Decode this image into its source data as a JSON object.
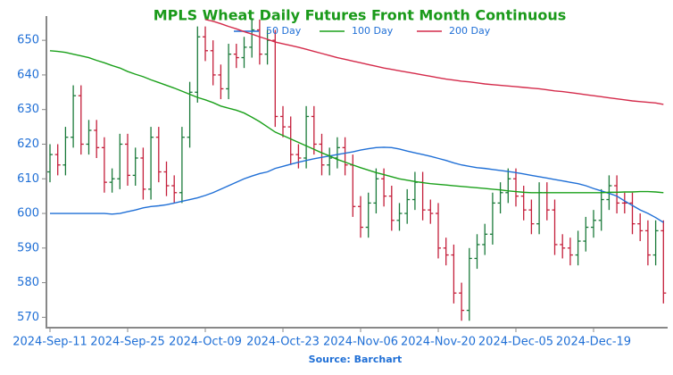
{
  "chart_data": {
    "type": "ohlc",
    "title": "MPLS Wheat Daily Futures Front Month Continuous",
    "source": "Source: Barchart",
    "categories": [
      "2024-Sep-11",
      null,
      null,
      null,
      null,
      null,
      null,
      null,
      null,
      null,
      "2024-Sep-25",
      null,
      null,
      null,
      null,
      null,
      null,
      null,
      null,
      null,
      "2024-Oct-09",
      null,
      null,
      null,
      null,
      null,
      null,
      null,
      null,
      null,
      "2024-Oct-23",
      null,
      null,
      null,
      null,
      null,
      null,
      null,
      null,
      null,
      "2024-Nov-06",
      null,
      null,
      null,
      null,
      null,
      null,
      null,
      null,
      null,
      "2024-Nov-20",
      null,
      null,
      null,
      null,
      null,
      null,
      null,
      null,
      null,
      "2024-Dec-05",
      null,
      null,
      null,
      null,
      null,
      null,
      null,
      null,
      null,
      "2024-Dec-19",
      null,
      null,
      null,
      null,
      null,
      null,
      null,
      null,
      null
    ],
    "up_color": "#1a7a3a",
    "down_color": "#c41e3a",
    "ohlc": {
      "open": [
        612,
        617,
        614,
        622,
        634,
        620,
        624,
        619,
        609,
        610,
        620,
        611,
        616,
        607,
        622,
        612,
        608,
        606,
        622,
        635,
        651,
        647,
        640,
        636,
        646,
        645,
        648,
        653,
        646,
        650,
        628,
        625,
        617,
        616,
        628,
        620,
        614,
        616,
        619,
        614,
        602,
        596,
        603,
        610,
        605,
        598,
        600,
        604,
        609,
        601,
        600,
        590,
        588,
        577,
        572,
        587,
        591,
        594,
        603,
        606,
        610,
        605,
        601,
        597,
        606,
        601,
        591,
        590,
        588,
        592,
        596,
        598,
        604,
        608,
        603,
        603,
        597,
        595,
        588,
        595
      ],
      "high": [
        620,
        620,
        625,
        637,
        637,
        627,
        627,
        622,
        613,
        623,
        623,
        619,
        619,
        625,
        625,
        615,
        611,
        625,
        638,
        654,
        654,
        650,
        643,
        649,
        649,
        651,
        656,
        656,
        653,
        653,
        631,
        628,
        620,
        631,
        631,
        623,
        619,
        622,
        622,
        617,
        605,
        606,
        613,
        613,
        608,
        603,
        607,
        612,
        612,
        604,
        603,
        593,
        591,
        580,
        590,
        594,
        597,
        606,
        609,
        613,
        613,
        608,
        604,
        609,
        609,
        604,
        594,
        593,
        595,
        599,
        601,
        607,
        611,
        611,
        606,
        606,
        600,
        598,
        598,
        598
      ],
      "low": [
        609,
        611,
        611,
        619,
        617,
        617,
        616,
        606,
        606,
        607,
        608,
        608,
        604,
        604,
        609,
        605,
        603,
        603,
        619,
        632,
        644,
        637,
        633,
        633,
        642,
        642,
        645,
        643,
        643,
        625,
        622,
        614,
        613,
        613,
        617,
        611,
        611,
        613,
        611,
        599,
        593,
        593,
        600,
        602,
        595,
        595,
        597,
        601,
        598,
        597,
        587,
        585,
        574,
        569,
        569,
        584,
        588,
        591,
        600,
        603,
        602,
        598,
        594,
        594,
        598,
        588,
        587,
        585,
        585,
        589,
        593,
        595,
        601,
        600,
        600,
        594,
        592,
        585,
        585,
        574
      ],
      "close": [
        617,
        614,
        622,
        634,
        620,
        624,
        619,
        609,
        610,
        620,
        611,
        616,
        607,
        622,
        612,
        608,
        606,
        622,
        635,
        651,
        647,
        640,
        636,
        646,
        645,
        648,
        653,
        646,
        650,
        628,
        625,
        617,
        616,
        628,
        620,
        614,
        616,
        619,
        614,
        602,
        596,
        603,
        610,
        605,
        598,
        600,
        604,
        609,
        601,
        600,
        590,
        588,
        577,
        572,
        587,
        591,
        594,
        603,
        606,
        610,
        605,
        601,
        597,
        606,
        601,
        591,
        590,
        588,
        592,
        596,
        598,
        604,
        608,
        603,
        603,
        597,
        595,
        588,
        595,
        577
      ]
    },
    "series": [
      {
        "name": "50 Day",
        "color": "#1f6fd6",
        "values": [
          600,
          600,
          600,
          600,
          600,
          600,
          600,
          600,
          599.8,
          600,
          600.5,
          601,
          601.6,
          602,
          602.2,
          602.5,
          603,
          603.5,
          604,
          604.5,
          605.2,
          606,
          607,
          608,
          609,
          610,
          610.8,
          611.5,
          612,
          613,
          613.6,
          614.2,
          614.8,
          615.3,
          615.8,
          616.2,
          616.6,
          617,
          617.4,
          617.8,
          618.3,
          618.7,
          619,
          619.1,
          619,
          618.6,
          618,
          617.5,
          617,
          616.5,
          615.9,
          615.3,
          614.6,
          614,
          613.6,
          613.2,
          613,
          612.7,
          612.4,
          612.1,
          611.8,
          611.4,
          611,
          610.6,
          610.2,
          609.8,
          609.4,
          609,
          608.6,
          608,
          607.2,
          606.5,
          605.8,
          605,
          603.6,
          602.3,
          601,
          600,
          598.8,
          597.4
        ]
      },
      {
        "name": "100 Day",
        "color": "#1aa01a",
        "values": [
          647,
          646.8,
          646.5,
          646,
          645.5,
          645,
          644.2,
          643.5,
          642.7,
          642,
          641,
          640.2,
          639.5,
          638.6,
          637.8,
          637,
          636.2,
          635.3,
          634.4,
          633.5,
          632.8,
          632,
          631,
          630.4,
          629.8,
          629,
          627.8,
          626.5,
          625,
          623.5,
          622.5,
          621.5,
          620.5,
          619.5,
          618.5,
          617.5,
          616.6,
          615.6,
          614.8,
          614,
          613.2,
          612.5,
          611.8,
          611.2,
          610.6,
          610,
          609.6,
          609.2,
          608.9,
          608.6,
          608.4,
          608.2,
          608,
          607.8,
          607.6,
          607.4,
          607.2,
          607,
          606.8,
          606.5,
          606.3,
          606.1,
          606,
          606,
          606,
          606,
          606,
          606,
          606,
          606,
          606,
          606,
          606.1,
          606.1,
          606.2,
          606.2,
          606.3,
          606.3,
          606.2,
          606
        ]
      },
      {
        "name": "200 Day",
        "color": "#d42a4a",
        "values": [
          null,
          null,
          null,
          null,
          null,
          null,
          null,
          null,
          null,
          null,
          null,
          null,
          null,
          null,
          null,
          null,
          null,
          null,
          null,
          null,
          656,
          655.5,
          654.8,
          654,
          653.3,
          652.5,
          651.8,
          651,
          650.3,
          649.5,
          649,
          648.5,
          648,
          647.4,
          646.8,
          646.2,
          645.6,
          645,
          644.5,
          644,
          643.5,
          643,
          642.5,
          642,
          641.6,
          641.2,
          640.8,
          640.4,
          640,
          639.6,
          639.2,
          638.8,
          638.5,
          638.2,
          638,
          637.7,
          637.4,
          637.2,
          637,
          636.8,
          636.6,
          636.4,
          636.2,
          636,
          635.7,
          635.4,
          635.2,
          634.9,
          634.6,
          634.3,
          634,
          633.7,
          633.4,
          633.1,
          632.8,
          632.5,
          632.3,
          632.1,
          631.9,
          631.5
        ]
      }
    ],
    "ylim": [
      567,
      657
    ],
    "yticks": [
      570,
      580,
      590,
      600,
      610,
      620,
      630,
      640,
      650
    ]
  }
}
